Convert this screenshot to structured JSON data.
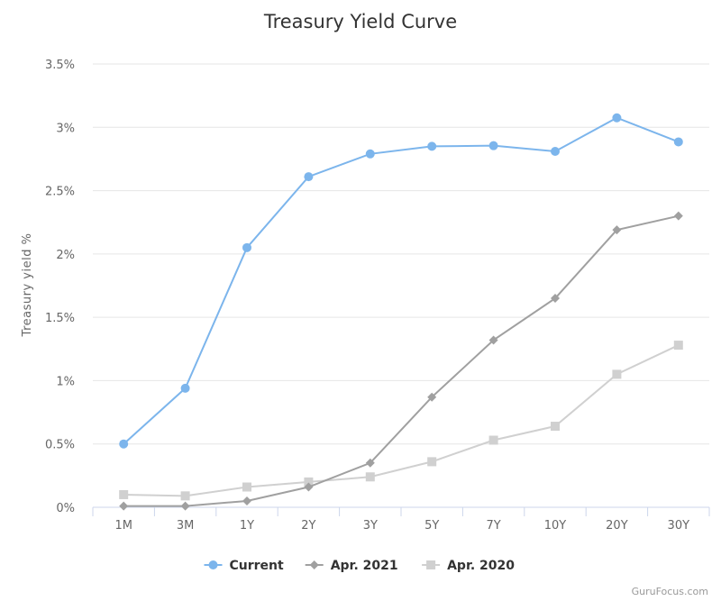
{
  "chart_data": {
    "type": "line",
    "title": "Treasury Yield Curve",
    "ylabel": "Treasury yield %",
    "xlabel": "",
    "categories": [
      "1M",
      "3M",
      "1Y",
      "2Y",
      "3Y",
      "5Y",
      "7Y",
      "10Y",
      "20Y",
      "30Y"
    ],
    "ylim": [
      0,
      3.5
    ],
    "yticks": [
      {
        "value": 0,
        "label": "0%"
      },
      {
        "value": 0.5,
        "label": "0.5%"
      },
      {
        "value": 1,
        "label": "1%"
      },
      {
        "value": 1.5,
        "label": "1.5%"
      },
      {
        "value": 2,
        "label": "2%"
      },
      {
        "value": 2.5,
        "label": "2.5%"
      },
      {
        "value": 3,
        "label": "3%"
      },
      {
        "value": 3.5,
        "label": "3.5%"
      }
    ],
    "grid": true,
    "legend_position": "bottom-center",
    "series": [
      {
        "name": "Current",
        "color": "#7cb5ec",
        "marker": "circle",
        "values": [
          0.5,
          0.94,
          2.05,
          2.61,
          2.79,
          2.85,
          2.855,
          2.81,
          3.075,
          2.885
        ]
      },
      {
        "name": "Apr. 2021",
        "color": "#a0a0a0",
        "marker": "diamond",
        "values": [
          0.01,
          0.01,
          0.05,
          0.16,
          0.35,
          0.87,
          1.32,
          1.65,
          2.19,
          2.3
        ]
      },
      {
        "name": "Apr. 2020",
        "color": "#d0d0d0",
        "marker": "square",
        "values": [
          0.1,
          0.09,
          0.16,
          0.2,
          0.24,
          0.36,
          0.53,
          0.64,
          1.05,
          1.28
        ]
      }
    ]
  },
  "credit": "GuruFocus.com"
}
